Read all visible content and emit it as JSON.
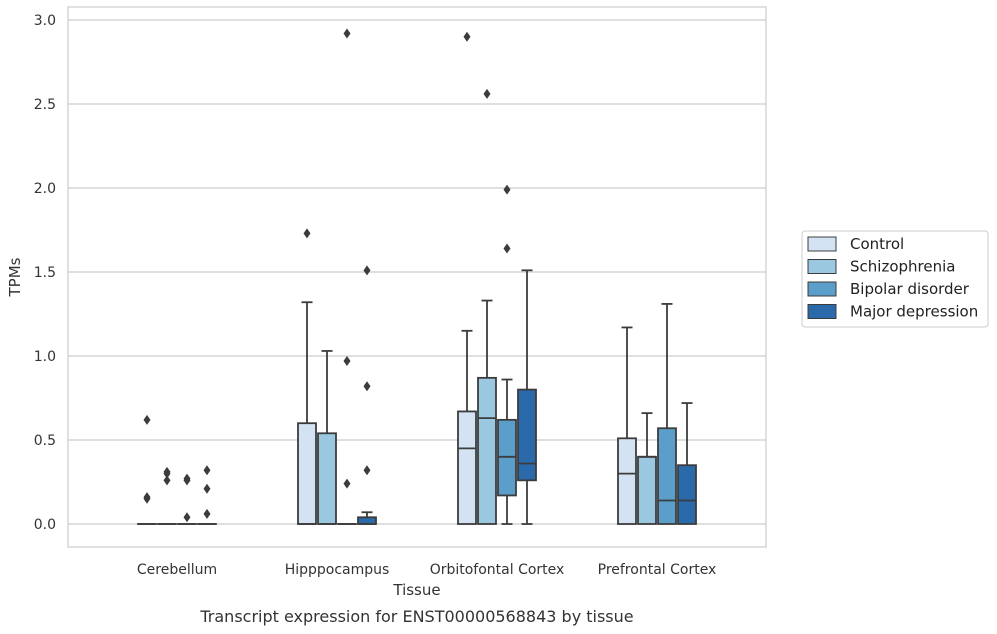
{
  "caption": "Transcript expression for ENST00000568843 by tissue",
  "chart_data": {
    "type": "box",
    "xlabel": "Tissue",
    "ylabel": "TPMs",
    "ylim": [
      -0.14,
      3.08
    ],
    "yticks": [
      0.0,
      0.5,
      1.0,
      1.5,
      2.0,
      2.5,
      3.0
    ],
    "ytick_labels": [
      "0.0",
      "0.5",
      "1.0",
      "1.5",
      "2.0",
      "2.5",
      "3.0"
    ],
    "grid": "horizontal",
    "legend_position": "right",
    "categories": [
      "Cerebellum",
      "Hipppocampus",
      "Orbitofontal Cortex",
      "Prefrontal Cortex"
    ],
    "series": [
      {
        "name": "Control",
        "color": "#d3e3f3",
        "boxes": [
          {
            "q1": 0,
            "median": 0,
            "q3": 0,
            "whisker_low": 0,
            "whisker_high": 0,
            "outliers": [
              0.62,
              0.16,
              0.15
            ]
          },
          {
            "q1": 0,
            "median": 0,
            "q3": 0.6,
            "whisker_low": 0,
            "whisker_high": 1.32,
            "outliers": [
              1.73
            ]
          },
          {
            "q1": 0,
            "median": 0.45,
            "q3": 0.67,
            "whisker_low": 0,
            "whisker_high": 1.15,
            "outliers": [
              2.9
            ]
          },
          {
            "q1": 0,
            "median": 0.3,
            "q3": 0.51,
            "whisker_low": 0,
            "whisker_high": 1.17,
            "outliers": []
          }
        ]
      },
      {
        "name": "Schizophrenia",
        "color": "#9ac8e0",
        "boxes": [
          {
            "q1": 0,
            "median": 0,
            "q3": 0,
            "whisker_low": 0,
            "whisker_high": 0,
            "outliers": [
              0.31,
              0.3,
              0.26
            ]
          },
          {
            "q1": 0,
            "median": 0,
            "q3": 0.54,
            "whisker_low": 0,
            "whisker_high": 1.03,
            "outliers": []
          },
          {
            "q1": 0,
            "median": 0.63,
            "q3": 0.87,
            "whisker_low": 0,
            "whisker_high": 1.33,
            "outliers": [
              2.56
            ]
          },
          {
            "q1": 0,
            "median": 0.4,
            "q3": 0.4,
            "whisker_low": 0,
            "whisker_high": 0.66,
            "outliers": []
          }
        ]
      },
      {
        "name": "Bipolar disorder",
        "color": "#5a9ec9",
        "boxes": [
          {
            "q1": 0,
            "median": 0,
            "q3": 0,
            "whisker_low": 0,
            "whisker_high": 0,
            "outliers": [
              0.27,
              0.26,
              0.04
            ]
          },
          {
            "q1": 0,
            "median": 0,
            "q3": 0,
            "whisker_low": 0,
            "whisker_high": 0,
            "outliers": [
              2.92,
              0.97,
              0.24
            ]
          },
          {
            "q1": 0.17,
            "median": 0.4,
            "q3": 0.62,
            "whisker_low": 0,
            "whisker_high": 0.86,
            "outliers": [
              1.99,
              1.64
            ]
          },
          {
            "q1": 0,
            "median": 0.14,
            "q3": 0.57,
            "whisker_low": 0,
            "whisker_high": 1.31,
            "outliers": []
          }
        ]
      },
      {
        "name": "Major depression",
        "color": "#2a6aab",
        "boxes": [
          {
            "q1": 0,
            "median": 0,
            "q3": 0,
            "whisker_low": 0,
            "whisker_high": 0,
            "outliers": [
              0.32,
              0.21,
              0.06
            ]
          },
          {
            "q1": 0,
            "median": 0,
            "q3": 0.04,
            "whisker_low": 0,
            "whisker_high": 0.07,
            "outliers": [
              1.51,
              0.82,
              0.32
            ]
          },
          {
            "q1": 0.26,
            "median": 0.36,
            "q3": 0.8,
            "whisker_low": 0,
            "whisker_high": 1.51,
            "outliers": []
          },
          {
            "q1": 0,
            "median": 0.14,
            "q3": 0.35,
            "whisker_low": 0,
            "whisker_high": 0.72,
            "outliers": []
          }
        ]
      }
    ]
  }
}
